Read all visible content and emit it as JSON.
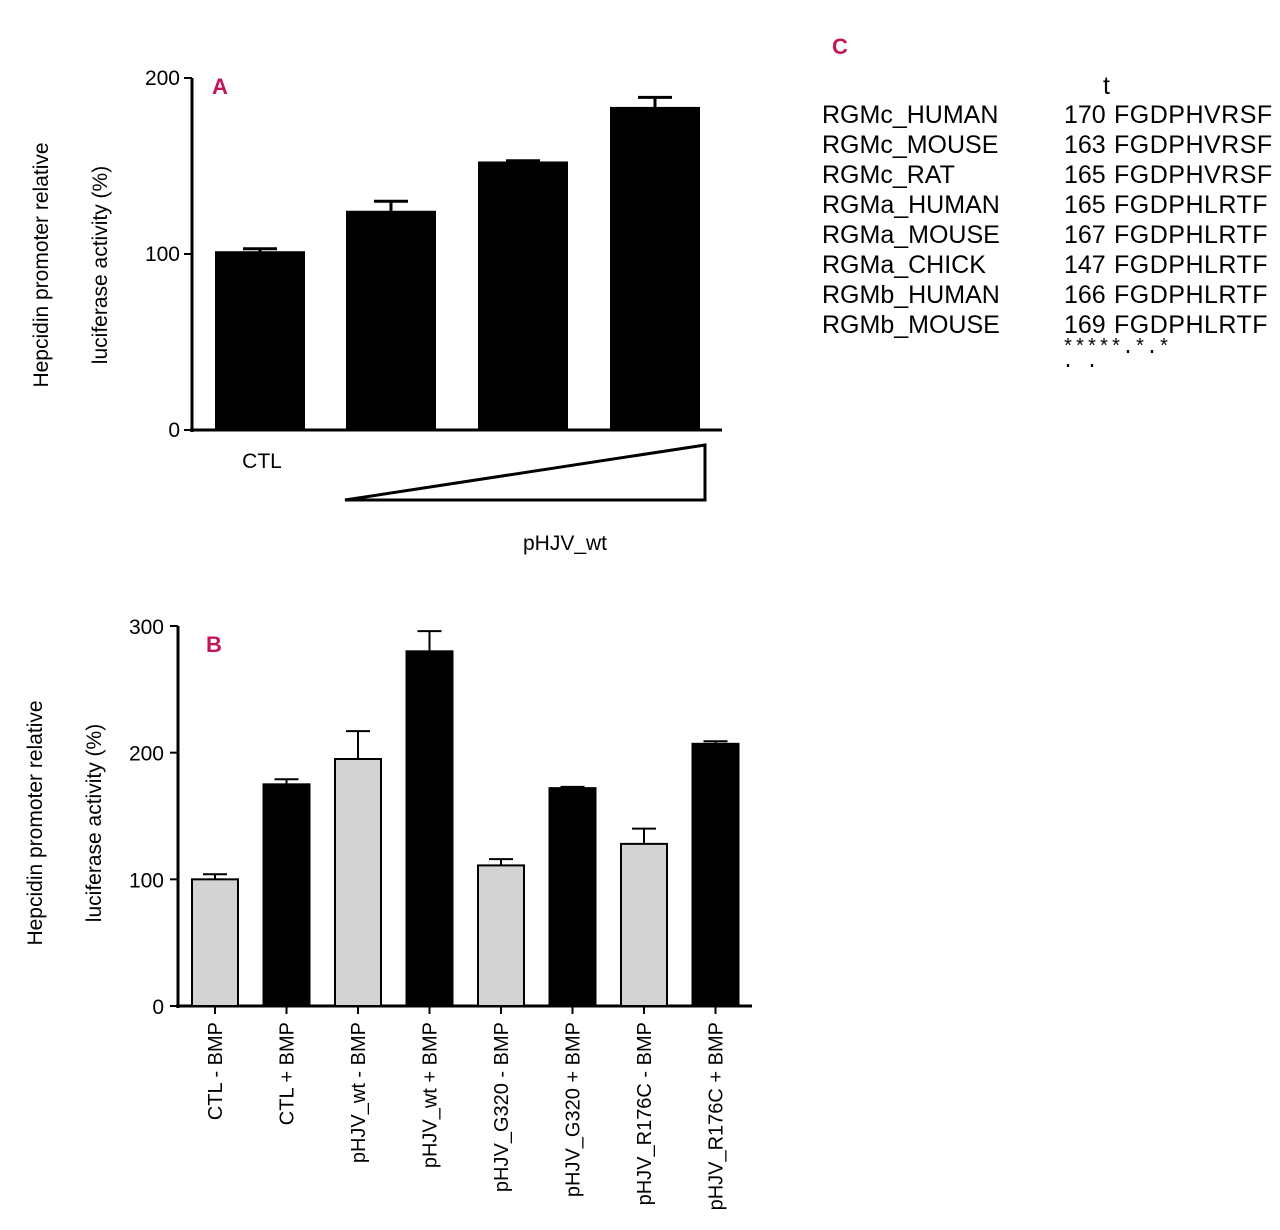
{
  "colors": {
    "panel_label": "#c2185b",
    "bar_black": "#000000",
    "bar_gray": "#d3d3d3"
  },
  "chart_data": [
    {
      "panel": "A",
      "type": "bar",
      "ylabel_line1": "Hepcidin promoter relative",
      "ylabel_line2": "luciferase activity (%)",
      "ylim": [
        0,
        200
      ],
      "yticks": [
        "0",
        "100",
        "200"
      ],
      "categories": [
        "CTL",
        "",
        "",
        ""
      ],
      "values": [
        101,
        124,
        152,
        183
      ],
      "errors": [
        2,
        6,
        1,
        6
      ],
      "colors": [
        "#000000",
        "#000000",
        "#000000",
        "#000000"
      ],
      "gradient_label": "pHJV_wt"
    },
    {
      "panel": "B",
      "type": "bar",
      "ylabel_line1": "Hepcidin promoter relative",
      "ylabel_line2": "luciferase activity (%)",
      "ylim": [
        0,
        300
      ],
      "yticks": [
        "0",
        "100",
        "200",
        "300"
      ],
      "categories": [
        "CTL - BMP",
        "CTL + BMP",
        "pHJV_wt - BMP",
        "pHJV_wt + BMP",
        "pHJV_G320 - BMP",
        "pHJV_G320 + BMP",
        "pHJV_R176C - BMP",
        "pHJV_R176C + BMP"
      ],
      "values": [
        100,
        175,
        195,
        280,
        111,
        172,
        128,
        207
      ],
      "errors": [
        4,
        4,
        22,
        16,
        5,
        1,
        12,
        2
      ],
      "colors": [
        "#d3d3d3",
        "#000000",
        "#d3d3d3",
        "#000000",
        "#d3d3d3",
        "#000000",
        "#d3d3d3",
        "#000000"
      ]
    }
  ],
  "panel_c": {
    "label": "C",
    "marker": "t",
    "rows": [
      {
        "name": "RGMc_HUMAN",
        "pos": "170",
        "seq": "FGDPHVRSF"
      },
      {
        "name": "RGMc_MOUSE",
        "pos": "163",
        "seq": "FGDPHVRSF"
      },
      {
        "name": "RGMc_RAT",
        "pos": "165",
        "seq": "FGDPHVRSF"
      },
      {
        "name": "RGMa_HUMAN",
        "pos": "165",
        "seq": "FGDPHLRTF"
      },
      {
        "name": "RGMa_MOUSE",
        "pos": "167",
        "seq": "FGDPHLRTF"
      },
      {
        "name": "RGMa_CHICK",
        "pos": "147",
        "seq": "FGDPHLRTF"
      },
      {
        "name": "RGMb_HUMAN",
        "pos": "166",
        "seq": "FGDPHLRTF"
      },
      {
        "name": "RGMb_MOUSE",
        "pos": "169",
        "seq": "FGDPHLRTF"
      }
    ],
    "consensus": "*****.*.*",
    "consensus_line2": ". ."
  }
}
